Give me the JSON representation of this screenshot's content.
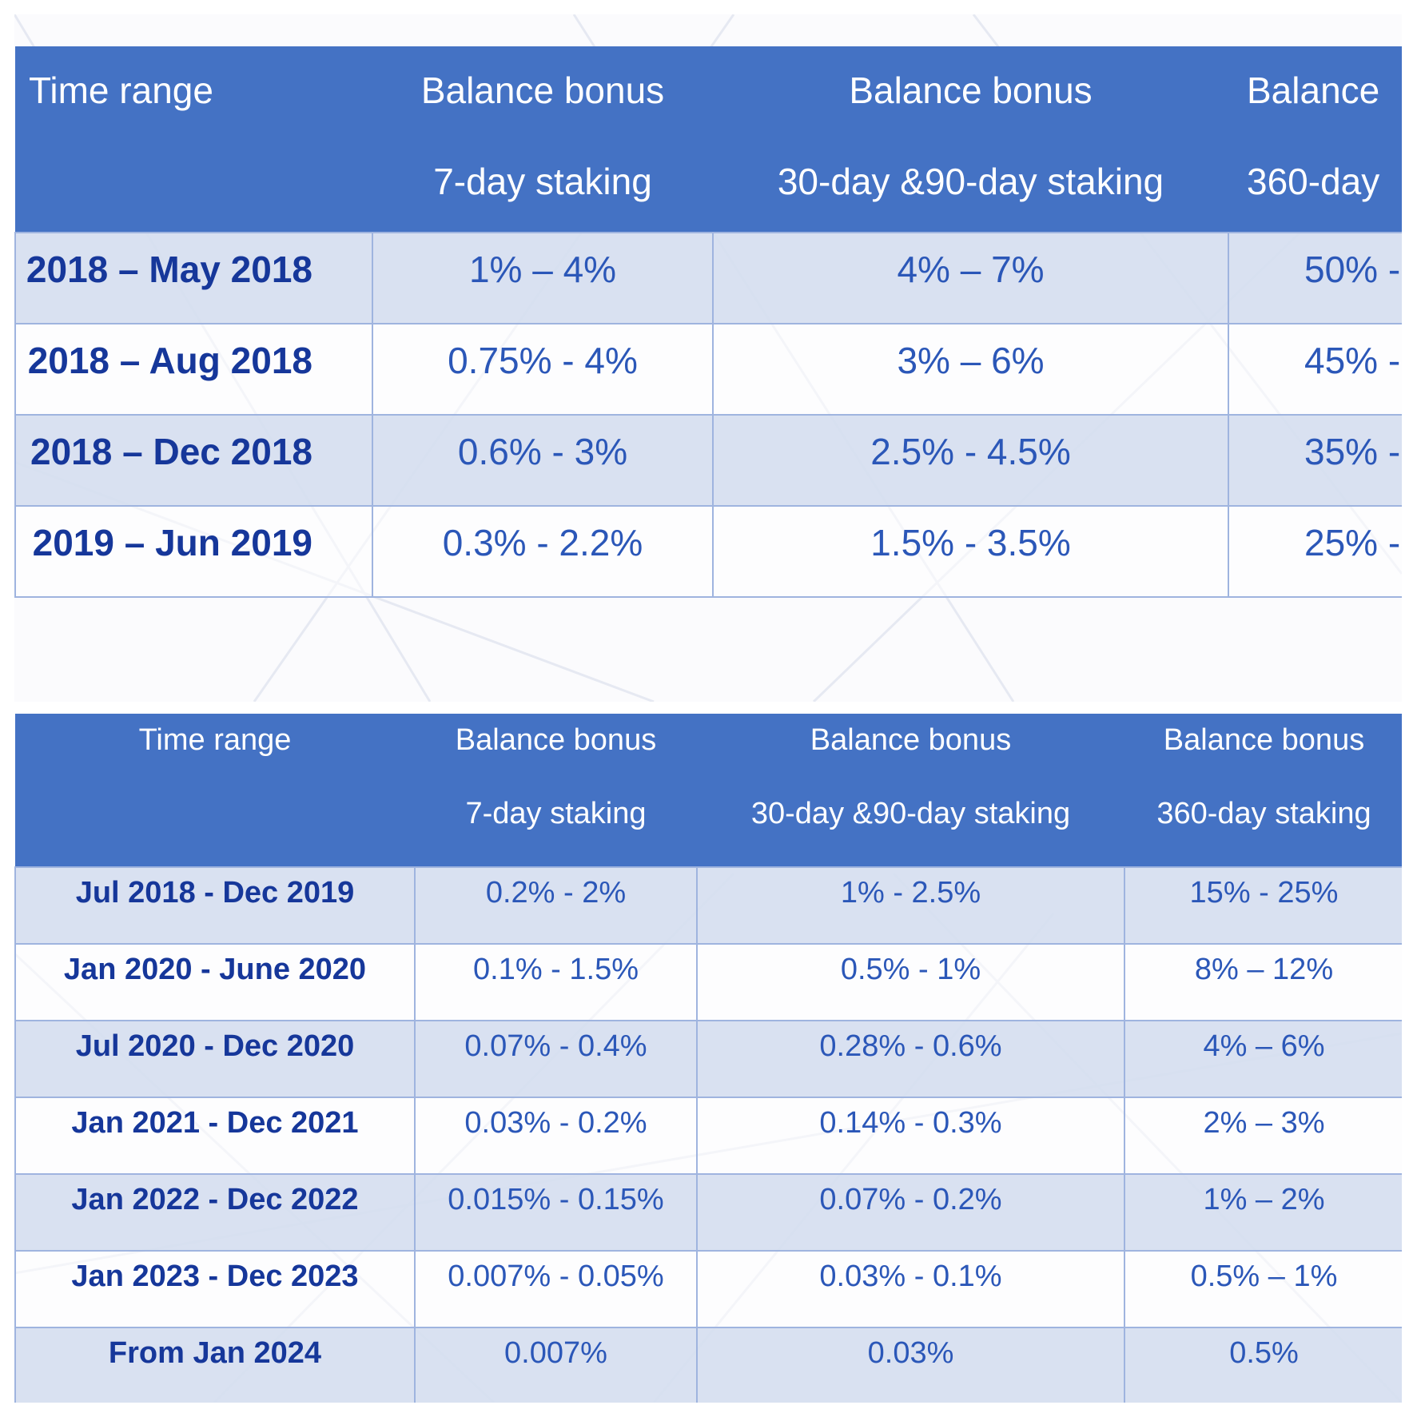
{
  "tables": {
    "top": {
      "headers": [
        {
          "line1": "Time range",
          "line2": ""
        },
        {
          "line1": "Balance bonus",
          "line2": "7-day staking"
        },
        {
          "line1": "Balance bonus",
          "line2": "30-day &90-day staking"
        },
        {
          "line1": "Balance",
          "line2": "360-day"
        }
      ],
      "rows": [
        {
          "range": "2018 – May 2018",
          "d7": "1% – 4%",
          "d30_90": "4% – 7%",
          "d360": "50% -"
        },
        {
          "range": "2018 – Aug 2018",
          "d7": "0.75% - 4%",
          "d30_90": "3% – 6%",
          "d360": "45% -"
        },
        {
          "range": "2018 – Dec 2018",
          "d7": "0.6% - 3%",
          "d30_90": "2.5% - 4.5%",
          "d360": "35% -"
        },
        {
          "range": "2019 – Jun 2019",
          "d7": "0.3% - 2.2%",
          "d30_90": "1.5% - 3.5%",
          "d360": "25% -"
        }
      ]
    },
    "bottom": {
      "headers": [
        {
          "line1": "Time range",
          "line2": ""
        },
        {
          "line1": "Balance bonus",
          "line2": "7-day staking"
        },
        {
          "line1": "Balance bonus",
          "line2": "30-day &90-day staking"
        },
        {
          "line1": "Balance bonus",
          "line2": "360-day staking"
        }
      ],
      "rows": [
        {
          "range": "Jul 2018 - Dec 2019",
          "d7": "0.2% - 2%",
          "d30_90": "1% - 2.5%",
          "d360": "15% - 25%"
        },
        {
          "range": "Jan 2020 - June 2020",
          "d7": "0.1% - 1.5%",
          "d30_90": "0.5% - 1%",
          "d360": "8% – 12%"
        },
        {
          "range": "Jul 2020 - Dec 2020",
          "d7": "0.07% - 0.4%",
          "d30_90": "0.28% - 0.6%",
          "d360": "4% – 6%"
        },
        {
          "range": "Jan 2021 - Dec 2021",
          "d7": "0.03% - 0.2%",
          "d30_90": "0.14% - 0.3%",
          "d360": "2% – 3%"
        },
        {
          "range": "Jan 2022 - Dec 2022",
          "d7": "0.015% - 0.15%",
          "d30_90": "0.07% - 0.2%",
          "d360": "1% – 2%"
        },
        {
          "range": "Jan 2023 - Dec 2023",
          "d7": "0.007% - 0.05%",
          "d30_90": "0.03% - 0.1%",
          "d360": "0.5% – 1%"
        },
        {
          "range": "From Jan 2024",
          "d7": "0.007%",
          "d30_90": "0.03%",
          "d360": "0.5%"
        }
      ]
    }
  },
  "colors": {
    "header_bg": "#4472c4",
    "header_text": "#ffffff",
    "row_shade": "#d6def0",
    "range_text": "#16379a",
    "value_text": "#2b57b8",
    "grid": "#9fb4df"
  }
}
